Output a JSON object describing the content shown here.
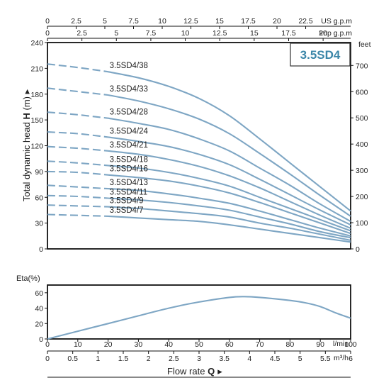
{
  "model_badge": "3.5SD4",
  "colors": {
    "curve": "#7ea6c4",
    "badge_text": "#3b86a8",
    "badge_border": "#333333"
  },
  "top_axes": {
    "us_label": "US g.p.m",
    "us_ticks": [
      "0",
      "2.5",
      "5",
      "7.5",
      "10",
      "12.5",
      "15",
      "17.5",
      "20",
      "22.5"
    ],
    "imp_label": "Imp g.p.m",
    "imp_ticks": [
      "0",
      "2.5",
      "5",
      "7.5",
      "10",
      "12.5",
      "15",
      "17.5",
      "20"
    ]
  },
  "head_axis": {
    "label_prefix": "Total dynamic head ",
    "label_symbol": "H",
    "label_unit": " (m) ▸",
    "ticks": [
      "0",
      "30",
      "60",
      "90",
      "120",
      "150",
      "180",
      "210",
      "240"
    ]
  },
  "feet_axis": {
    "label": "feet",
    "ticks": [
      "0",
      "100",
      "200",
      "300",
      "400",
      "500",
      "600",
      "700"
    ]
  },
  "eta_axis": {
    "label": "Eta(%)",
    "ticks": [
      "0",
      "20",
      "40",
      "60"
    ]
  },
  "bottom_axes": {
    "lmin_ticks": [
      "0",
      "10",
      "20",
      "30",
      "40",
      "50",
      "60",
      "70",
      "80",
      "90",
      "100"
    ],
    "lmin_label": "l/min",
    "m3h_ticks": [
      "0",
      "0.5",
      "1",
      "1.5",
      "2",
      "2.5",
      "3",
      "3.5",
      "4",
      "4.5",
      "5",
      "5.5",
      "6"
    ],
    "m3h_label": "m³/h",
    "flow_label_prefix": "Flow  rate  ",
    "flow_symbol": "Q",
    "flow_arrow": "▸"
  },
  "chart_data": [
    {
      "type": "line",
      "xlabel": "Flow rate Q (l/min)",
      "ylabel": "Total dynamic head H (m)",
      "xlim": [
        0,
        100
      ],
      "ylim": [
        0,
        240
      ],
      "grid": false,
      "x": [
        0,
        10,
        20,
        30,
        40,
        50,
        60,
        70,
        80,
        90,
        100
      ],
      "series": [
        {
          "name": "3.5SD4/38",
          "values": [
            215,
            211,
            206,
            199,
            189,
            175,
            155,
            128,
            100,
            72,
            44
          ]
        },
        {
          "name": "3.5SD4/33",
          "values": [
            187,
            183,
            179,
            172,
            163,
            151,
            134,
            111,
            87,
            62,
            38
          ]
        },
        {
          "name": "3.5SD4/28",
          "values": [
            159,
            156,
            152,
            146,
            139,
            128,
            114,
            94,
            74,
            52,
            32
          ]
        },
        {
          "name": "3.5SD4/24",
          "values": [
            136,
            134,
            130,
            125,
            119,
            110,
            98,
            81,
            63,
            45,
            28
          ]
        },
        {
          "name": "3.5SD4/21",
          "values": [
            119,
            117,
            114,
            110,
            104,
            96,
            85,
            71,
            55,
            39,
            24
          ]
        },
        {
          "name": "3.5SD4/18",
          "values": [
            102,
            100,
            97,
            94,
            89,
            82,
            73,
            60,
            47,
            34,
            21
          ]
        },
        {
          "name": "3.5SD4/16",
          "values": [
            90,
            89,
            86,
            83,
            79,
            73,
            65,
            54,
            42,
            30,
            18
          ]
        },
        {
          "name": "3.5SD4/13",
          "values": [
            74,
            72,
            70,
            68,
            64,
            59,
            53,
            44,
            34,
            24,
            15
          ]
        },
        {
          "name": "3.5SD4/11",
          "values": [
            62,
            61,
            59,
            57,
            54,
            50,
            45,
            37,
            29,
            20,
            13
          ]
        },
        {
          "name": "3.5SD4/9",
          "values": [
            51,
            50,
            49,
            47,
            44,
            41,
            37,
            30,
            24,
            17,
            10
          ]
        },
        {
          "name": "3.5SD4/7",
          "values": [
            40,
            39,
            38,
            36,
            34,
            32,
            28,
            23,
            18,
            13,
            8
          ]
        }
      ]
    },
    {
      "type": "line",
      "ylabel": "Eta(%)",
      "xlim": [
        0,
        100
      ],
      "ylim": [
        0,
        70
      ],
      "x": [
        0,
        10,
        20,
        30,
        40,
        50,
        60,
        65,
        70,
        80,
        85,
        90,
        95,
        100
      ],
      "series": [
        {
          "values": [
            0,
            10,
            20,
            30,
            40,
            48,
            54,
            55,
            54,
            50,
            47,
            42,
            34,
            27
          ]
        }
      ]
    }
  ]
}
